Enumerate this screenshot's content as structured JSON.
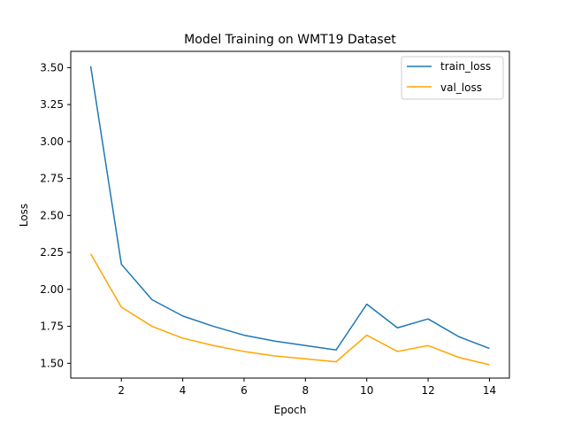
{
  "chart_data": {
    "type": "line",
    "title": "Model Training on WMT19 Dataset",
    "xlabel": "Epoch",
    "ylabel": "Loss",
    "xlim": [
      0.35,
      14.65
    ],
    "ylim": [
      1.4,
      3.61
    ],
    "xticks": [
      "2",
      "4",
      "6",
      "8",
      "10",
      "12",
      "14"
    ],
    "yticks": [
      "1.50",
      "1.75",
      "2.00",
      "2.25",
      "2.50",
      "2.75",
      "3.00",
      "3.25",
      "3.50"
    ],
    "grid": false,
    "legend_position": "upper right",
    "x": [
      1,
      2,
      3,
      4,
      5,
      6,
      7,
      8,
      9,
      10,
      11,
      12,
      13,
      14
    ],
    "series": [
      {
        "name": "train_loss",
        "color": "#1f77b4",
        "values": [
          3.51,
          2.17,
          1.93,
          1.82,
          1.75,
          1.69,
          1.65,
          1.62,
          1.59,
          1.9,
          1.74,
          1.8,
          1.68,
          1.6
        ]
      },
      {
        "name": "val_loss",
        "color": "#ffa500",
        "values": [
          2.24,
          1.88,
          1.75,
          1.67,
          1.62,
          1.58,
          1.55,
          1.53,
          1.51,
          1.69,
          1.58,
          1.62,
          1.54,
          1.49
        ]
      }
    ]
  }
}
